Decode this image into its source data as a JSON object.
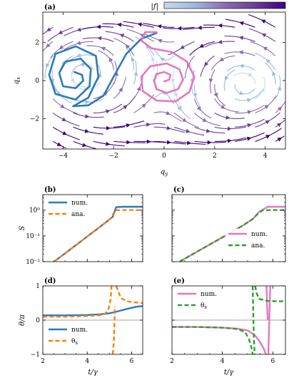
{
  "figure": {
    "colorbar_label": "|f|",
    "colorbar_colors": [
      "#c6dbef",
      "#9ebae0",
      "#8c6bb1",
      "#6a3d9a",
      "#3f007d"
    ]
  },
  "colors": {
    "blue": "#2b7bba",
    "orange": "#ff7f0e",
    "pink": "#e377c2",
    "green": "#2ca02c"
  },
  "chart_data": [
    {
      "id": "a",
      "type": "streamplot",
      "panel_label": "(a)",
      "xlabel": "q_y",
      "ylabel": "q_x",
      "xlim": [
        -4.8,
        4.8
      ],
      "ylim": [
        -3.6,
        3.6
      ],
      "xticks": [
        -4,
        -2,
        0,
        2,
        4
      ],
      "yticks": [
        -2,
        0,
        2
      ],
      "xtick_labels": [
        "−4",
        "−2",
        "0",
        "2",
        "4"
      ],
      "ytick_labels": [
        "−2",
        "0",
        "2"
      ],
      "centers": [
        {
          "x": -3.6,
          "y": 0.4,
          "sense": "ccw"
        },
        {
          "x": 0.0,
          "y": 0.0,
          "sense": "cw"
        },
        {
          "x": 3.6,
          "y": -0.3,
          "sense": "ccw"
        }
      ],
      "trajectories": [
        {
          "color": "blue",
          "points": [
            [
              -3.55,
              0.45
            ],
            [
              -3.25,
              0.3
            ],
            [
              -3.2,
              0.0
            ],
            [
              -3.5,
              -0.4
            ],
            [
              -4.0,
              -0.3
            ],
            [
              -4.15,
              0.4
            ],
            [
              -3.9,
              1.0
            ],
            [
              -3.3,
              1.15
            ],
            [
              -2.9,
              0.6
            ],
            [
              -2.95,
              -0.3
            ],
            [
              -3.5,
              -1.0
            ],
            [
              -4.3,
              -0.7
            ],
            [
              -4.55,
              0.3
            ],
            [
              -4.3,
              1.4
            ],
            [
              -3.5,
              1.8
            ],
            [
              -2.7,
              1.3
            ],
            [
              -2.6,
              0.2
            ],
            [
              -3.0,
              -0.9
            ],
            [
              -3.6,
              -1.35
            ]
          ]
        },
        {
          "color": "blue",
          "points": [
            [
              -3.6,
              -1.35
            ],
            [
              -3.0,
              -1.3
            ],
            [
              -2.4,
              -0.8
            ],
            [
              -2.0,
              0.2
            ],
            [
              -1.5,
              1.4
            ],
            [
              -0.9,
              2.2
            ],
            [
              -0.3,
              2.5
            ]
          ]
        },
        {
          "color": "pink",
          "points": [
            [
              0.0,
              -0.05
            ],
            [
              0.2,
              0.05
            ],
            [
              0.25,
              0.3
            ],
            [
              0.0,
              0.45
            ],
            [
              -0.3,
              0.35
            ],
            [
              -0.4,
              0.0
            ],
            [
              -0.3,
              -0.45
            ],
            [
              0.1,
              -0.65
            ],
            [
              0.55,
              -0.45
            ],
            [
              0.75,
              0.05
            ],
            [
              0.6,
              0.6
            ],
            [
              0.1,
              0.9
            ],
            [
              -0.55,
              0.75
            ],
            [
              -0.9,
              0.2
            ],
            [
              -0.85,
              -0.55
            ],
            [
              -0.3,
              -1.05
            ],
            [
              0.45,
              -1.1
            ],
            [
              1.0,
              -0.6
            ],
            [
              1.2,
              0.2
            ],
            [
              0.9,
              1.0
            ],
            [
              0.3,
              1.5
            ],
            [
              -0.5,
              1.7
            ],
            [
              -0.9,
              2.1
            ],
            [
              -0.75,
              2.55
            ],
            [
              -0.3,
              2.55
            ]
          ]
        }
      ]
    },
    {
      "id": "b",
      "type": "line",
      "panel_label": "(b)",
      "ylabel": "S",
      "yscale": "log",
      "xlim": [
        2,
        6.5
      ],
      "ylim": [
        0.01,
        4
      ],
      "xticks": [
        2,
        4,
        6
      ],
      "yticks": [
        0.01,
        0.1,
        1
      ],
      "ytick_labels": [
        "10⁻²",
        "10⁻¹",
        "10⁰"
      ],
      "legend": {
        "loc": "upper-left",
        "entries": [
          "num.",
          "ana."
        ]
      },
      "series": [
        {
          "name": "num.",
          "color": "blue",
          "dash": "solid",
          "x": [
            2.5,
            2.9,
            3.3,
            3.7,
            4.1,
            4.5,
            4.9,
            5.15,
            5.3,
            5.6,
            6.0,
            6.5
          ],
          "y": [
            0.01,
            0.018,
            0.033,
            0.06,
            0.11,
            0.2,
            0.37,
            0.55,
            1.3,
            1.35,
            1.35,
            1.35
          ]
        },
        {
          "name": "ana.",
          "color": "orange",
          "dash": "dashed",
          "x": [
            2.5,
            2.9,
            3.3,
            3.7,
            4.1,
            4.5,
            4.9,
            5.1,
            5.25,
            5.6,
            6.0,
            6.5
          ],
          "y": [
            0.01,
            0.018,
            0.033,
            0.06,
            0.11,
            0.2,
            0.37,
            0.52,
            1.0,
            1.0,
            1.0,
            1.0
          ]
        }
      ]
    },
    {
      "id": "c",
      "type": "line",
      "panel_label": "(c)",
      "yscale": "log",
      "xlim": [
        2,
        6.5
      ],
      "ylim": [
        0.01,
        4
      ],
      "xticks": [
        2,
        4,
        6
      ],
      "yticks": [
        0.01,
        0.1,
        1
      ],
      "legend": {
        "loc": "lower-right",
        "entries": [
          "num.",
          "ana."
        ]
      },
      "series": [
        {
          "name": "num.",
          "color": "pink",
          "dash": "solid",
          "x": [
            2.3,
            2.8,
            3.3,
            3.8,
            4.3,
            4.8,
            5.2,
            5.45,
            5.8,
            6.2,
            6.5
          ],
          "y": [
            0.01,
            0.019,
            0.036,
            0.068,
            0.13,
            0.25,
            0.45,
            0.85,
            1.35,
            1.35,
            1.35
          ]
        },
        {
          "name": "ana.",
          "color": "green",
          "dash": "dashed",
          "x": [
            2.3,
            2.8,
            3.3,
            3.8,
            4.3,
            4.8,
            5.2,
            5.45,
            5.6,
            6.0,
            6.5
          ],
          "y": [
            0.01,
            0.019,
            0.036,
            0.068,
            0.13,
            0.25,
            0.45,
            0.8,
            1.0,
            1.0,
            1.0
          ]
        }
      ]
    },
    {
      "id": "d",
      "type": "line",
      "panel_label": "(d)",
      "xlabel": "t/γ",
      "ylabel": "θ/π",
      "xlim": [
        2,
        6.5
      ],
      "ylim": [
        -1,
        1
      ],
      "xticks": [
        2,
        4,
        6
      ],
      "yticks": [
        -1,
        0,
        1
      ],
      "ytick_labels": [
        "−1",
        "0",
        "1"
      ],
      "hline": 0,
      "legend": {
        "loc": "lower-left",
        "entries": [
          "num.",
          "θs"
        ]
      },
      "series": [
        {
          "name": "num.",
          "color": "blue",
          "dash": "solid",
          "x": [
            2.0,
            3.0,
            4.0,
            4.6,
            5.0,
            5.4,
            5.8,
            6.2,
            6.5
          ],
          "y": [
            0.14,
            0.14,
            0.15,
            0.17,
            0.2,
            0.26,
            0.33,
            0.39,
            0.41
          ]
        },
        {
          "name": "θs",
          "color": "orange",
          "dash": "dashed",
          "segments": [
            {
              "x": [
                2.0,
                3.0,
                4.0,
                4.5,
                4.8,
                4.95,
                5.05,
                5.1
              ],
              "y": [
                0.1,
                0.1,
                0.12,
                0.14,
                0.18,
                0.3,
                0.6,
                1.0
              ]
            },
            {
              "x": [
                5.15,
                5.2,
                5.25
              ],
              "y": [
                -1.0,
                -0.6,
                0.4
              ]
            },
            {
              "x": [
                5.3,
                5.4,
                5.5,
                5.8,
                6.1,
                6.5
              ],
              "y": [
                1.0,
                0.85,
                0.65,
                0.55,
                0.52,
                0.5
              ]
            }
          ]
        }
      ]
    },
    {
      "id": "e",
      "type": "line",
      "panel_label": "(e)",
      "xlabel": "t/γ",
      "xlim": [
        2,
        6.5
      ],
      "ylim": [
        -1,
        1
      ],
      "xticks": [
        2,
        4,
        6
      ],
      "yticks": [
        -1,
        0,
        1
      ],
      "hline": 0,
      "legend": {
        "loc": "upper-left",
        "entries": [
          "num.",
          "θs"
        ]
      },
      "series": [
        {
          "name": "num.",
          "color": "pink",
          "segments": [
            {
              "x": [
                2.0,
                3.0,
                4.0,
                4.6,
                5.0,
                5.3,
                5.5,
                5.65,
                5.72,
                5.75
              ],
              "y": [
                -0.2,
                -0.2,
                -0.22,
                -0.25,
                -0.3,
                -0.45,
                -0.65,
                -0.85,
                -1.0,
                -1.0
              ]
            },
            {
              "x": [
                5.75,
                5.77,
                5.8
              ],
              "y": [
                1.0,
                0.5,
                0.0
              ]
            },
            {
              "x": [
                5.82,
                5.86,
                5.9
              ],
              "y": [
                -1.0,
                0.0,
                1.0
              ]
            }
          ]
        },
        {
          "name": "θs",
          "color": "green",
          "dash": "dashed",
          "segments": [
            {
              "x": [
                2.0,
                3.0,
                4.0,
                4.6,
                4.9,
                5.05,
                5.15,
                5.2
              ],
              "y": [
                -0.2,
                -0.2,
                -0.22,
                -0.26,
                -0.35,
                -0.55,
                -0.8,
                -1.0
              ]
            },
            {
              "x": [
                5.2,
                5.22,
                5.25,
                5.28
              ],
              "y": [
                1.0,
                0.3,
                -0.5,
                -1.0
              ]
            },
            {
              "x": [
                5.3,
                5.35,
                5.45,
                5.8,
                6.2,
                6.5
              ],
              "y": [
                1.0,
                0.8,
                0.62,
                0.56,
                0.55,
                0.55
              ]
            }
          ]
        }
      ]
    }
  ]
}
